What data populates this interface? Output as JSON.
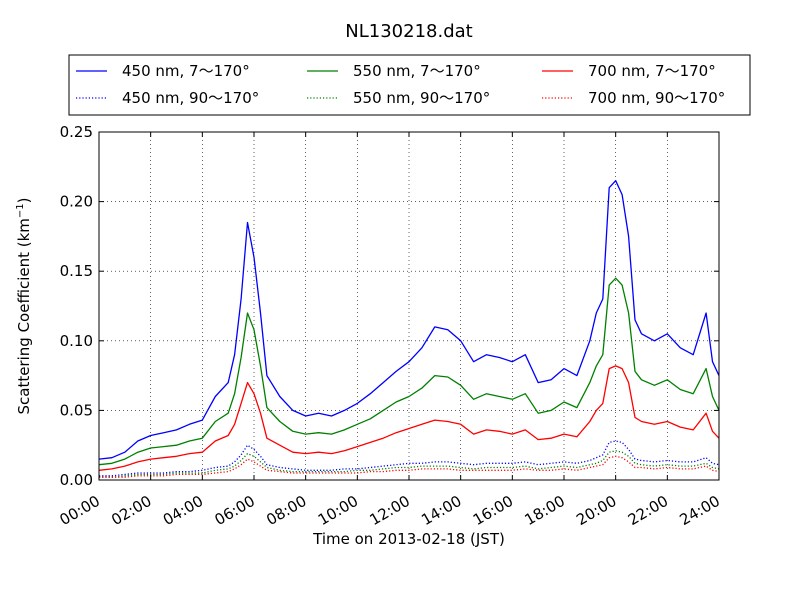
{
  "chart_data": {
    "type": "line",
    "title": "NL130218.dat",
    "xlabel": "Time on 2013-02-18 (JST)",
    "ylabel_main": "Scattering Coefficient (km",
    "ylabel_sup": "−1",
    "ylabel_end": ")",
    "xlim": [
      0,
      24
    ],
    "ylim": [
      0,
      0.25
    ],
    "grid": true,
    "legend_position": "top",
    "x_ticks": [
      {
        "value": 0,
        "label": "00:00"
      },
      {
        "value": 2,
        "label": "02:00"
      },
      {
        "value": 4,
        "label": "04:00"
      },
      {
        "value": 6,
        "label": "06:00"
      },
      {
        "value": 8,
        "label": "08:00"
      },
      {
        "value": 10,
        "label": "10:00"
      },
      {
        "value": 12,
        "label": "12:00"
      },
      {
        "value": 14,
        "label": "14:00"
      },
      {
        "value": 16,
        "label": "16:00"
      },
      {
        "value": 18,
        "label": "18:00"
      },
      {
        "value": 20,
        "label": "20:00"
      },
      {
        "value": 22,
        "label": "22:00"
      },
      {
        "value": 24,
        "label": "24:00"
      }
    ],
    "y_ticks": [
      {
        "value": 0,
        "label": "0.00"
      },
      {
        "value": 0.05,
        "label": "0.05"
      },
      {
        "value": 0.1,
        "label": "0.10"
      },
      {
        "value": 0.15,
        "label": "0.15"
      },
      {
        "value": 0.2,
        "label": "0.20"
      },
      {
        "value": 0.25,
        "label": "0.25"
      }
    ],
    "x": [
      0,
      0.5,
      1,
      1.5,
      2,
      2.5,
      3,
      3.5,
      4,
      4.5,
      5,
      5.25,
      5.5,
      5.75,
      6,
      6.25,
      6.5,
      7,
      7.5,
      8,
      8.5,
      9,
      9.5,
      10,
      10.5,
      11,
      11.5,
      12,
      12.5,
      13,
      13.5,
      14,
      14.5,
      15,
      15.5,
      16,
      16.5,
      17,
      17.5,
      18,
      18.5,
      19,
      19.25,
      19.5,
      19.75,
      20,
      20.25,
      20.5,
      20.75,
      21,
      21.5,
      22,
      22.5,
      23,
      23.5,
      23.75,
      24
    ],
    "series": [
      {
        "name": "450 nm, 7～170°",
        "color": "#0000ff",
        "style": "solid",
        "values": [
          0.015,
          0.016,
          0.02,
          0.028,
          0.032,
          0.034,
          0.036,
          0.04,
          0.043,
          0.06,
          0.07,
          0.09,
          0.13,
          0.185,
          0.16,
          0.12,
          0.075,
          0.06,
          0.05,
          0.046,
          0.048,
          0.046,
          0.05,
          0.055,
          0.062,
          0.07,
          0.078,
          0.085,
          0.095,
          0.11,
          0.108,
          0.1,
          0.085,
          0.09,
          0.088,
          0.085,
          0.09,
          0.07,
          0.072,
          0.08,
          0.075,
          0.1,
          0.12,
          0.13,
          0.21,
          0.215,
          0.205,
          0.175,
          0.115,
          0.105,
          0.1,
          0.105,
          0.095,
          0.09,
          0.12,
          0.085,
          0.075
        ]
      },
      {
        "name": "550 nm, 7～170°",
        "color": "#008000",
        "style": "solid",
        "values": [
          0.011,
          0.012,
          0.015,
          0.02,
          0.023,
          0.024,
          0.025,
          0.028,
          0.03,
          0.042,
          0.048,
          0.062,
          0.088,
          0.12,
          0.108,
          0.082,
          0.052,
          0.042,
          0.035,
          0.033,
          0.034,
          0.033,
          0.036,
          0.04,
          0.044,
          0.05,
          0.056,
          0.06,
          0.066,
          0.075,
          0.074,
          0.068,
          0.058,
          0.062,
          0.06,
          0.058,
          0.062,
          0.048,
          0.05,
          0.056,
          0.052,
          0.07,
          0.082,
          0.09,
          0.14,
          0.145,
          0.14,
          0.12,
          0.078,
          0.072,
          0.068,
          0.072,
          0.065,
          0.062,
          0.08,
          0.06,
          0.05
        ]
      },
      {
        "name": "700 nm, 7～170°",
        "color": "#ff0000",
        "style": "solid",
        "values": [
          0.007,
          0.008,
          0.01,
          0.013,
          0.015,
          0.016,
          0.017,
          0.019,
          0.02,
          0.028,
          0.032,
          0.04,
          0.055,
          0.07,
          0.062,
          0.048,
          0.03,
          0.025,
          0.02,
          0.019,
          0.02,
          0.019,
          0.021,
          0.024,
          0.027,
          0.03,
          0.034,
          0.037,
          0.04,
          0.043,
          0.042,
          0.04,
          0.033,
          0.036,
          0.035,
          0.033,
          0.036,
          0.029,
          0.03,
          0.033,
          0.031,
          0.042,
          0.05,
          0.055,
          0.08,
          0.082,
          0.08,
          0.07,
          0.045,
          0.042,
          0.04,
          0.042,
          0.038,
          0.036,
          0.048,
          0.035,
          0.03
        ]
      },
      {
        "name": "450 nm, 90～170°",
        "color": "#0000ff",
        "style": "dotted",
        "values": [
          0.003,
          0.003,
          0.004,
          0.005,
          0.005,
          0.005,
          0.006,
          0.006,
          0.007,
          0.009,
          0.01,
          0.013,
          0.018,
          0.025,
          0.022,
          0.017,
          0.011,
          0.009,
          0.008,
          0.007,
          0.007,
          0.007,
          0.008,
          0.008,
          0.009,
          0.01,
          0.011,
          0.012,
          0.012,
          0.013,
          0.013,
          0.012,
          0.011,
          0.012,
          0.012,
          0.012,
          0.013,
          0.011,
          0.012,
          0.013,
          0.012,
          0.014,
          0.016,
          0.018,
          0.027,
          0.028,
          0.027,
          0.022,
          0.015,
          0.014,
          0.013,
          0.014,
          0.013,
          0.013,
          0.016,
          0.012,
          0.011
        ]
      },
      {
        "name": "550 nm, 90～170°",
        "color": "#008000",
        "style": "dotted",
        "values": [
          0.002,
          0.002,
          0.003,
          0.004,
          0.004,
          0.004,
          0.005,
          0.005,
          0.005,
          0.007,
          0.008,
          0.01,
          0.014,
          0.019,
          0.017,
          0.013,
          0.009,
          0.007,
          0.006,
          0.006,
          0.006,
          0.006,
          0.006,
          0.007,
          0.007,
          0.008,
          0.009,
          0.009,
          0.01,
          0.01,
          0.01,
          0.009,
          0.008,
          0.009,
          0.009,
          0.009,
          0.01,
          0.008,
          0.009,
          0.01,
          0.009,
          0.011,
          0.012,
          0.014,
          0.02,
          0.021,
          0.02,
          0.017,
          0.012,
          0.011,
          0.01,
          0.011,
          0.01,
          0.01,
          0.012,
          0.009,
          0.008
        ]
      },
      {
        "name": "700 nm, 90～170°",
        "color": "#ff0000",
        "style": "dotted",
        "values": [
          0.002,
          0.002,
          0.002,
          0.003,
          0.003,
          0.003,
          0.004,
          0.004,
          0.004,
          0.005,
          0.006,
          0.008,
          0.011,
          0.015,
          0.013,
          0.01,
          0.007,
          0.006,
          0.005,
          0.005,
          0.005,
          0.005,
          0.005,
          0.005,
          0.006,
          0.006,
          0.007,
          0.007,
          0.008,
          0.008,
          0.008,
          0.007,
          0.007,
          0.007,
          0.007,
          0.007,
          0.008,
          0.007,
          0.007,
          0.008,
          0.007,
          0.009,
          0.01,
          0.011,
          0.016,
          0.017,
          0.016,
          0.013,
          0.009,
          0.009,
          0.008,
          0.009,
          0.008,
          0.008,
          0.01,
          0.007,
          0.006
        ]
      }
    ]
  }
}
